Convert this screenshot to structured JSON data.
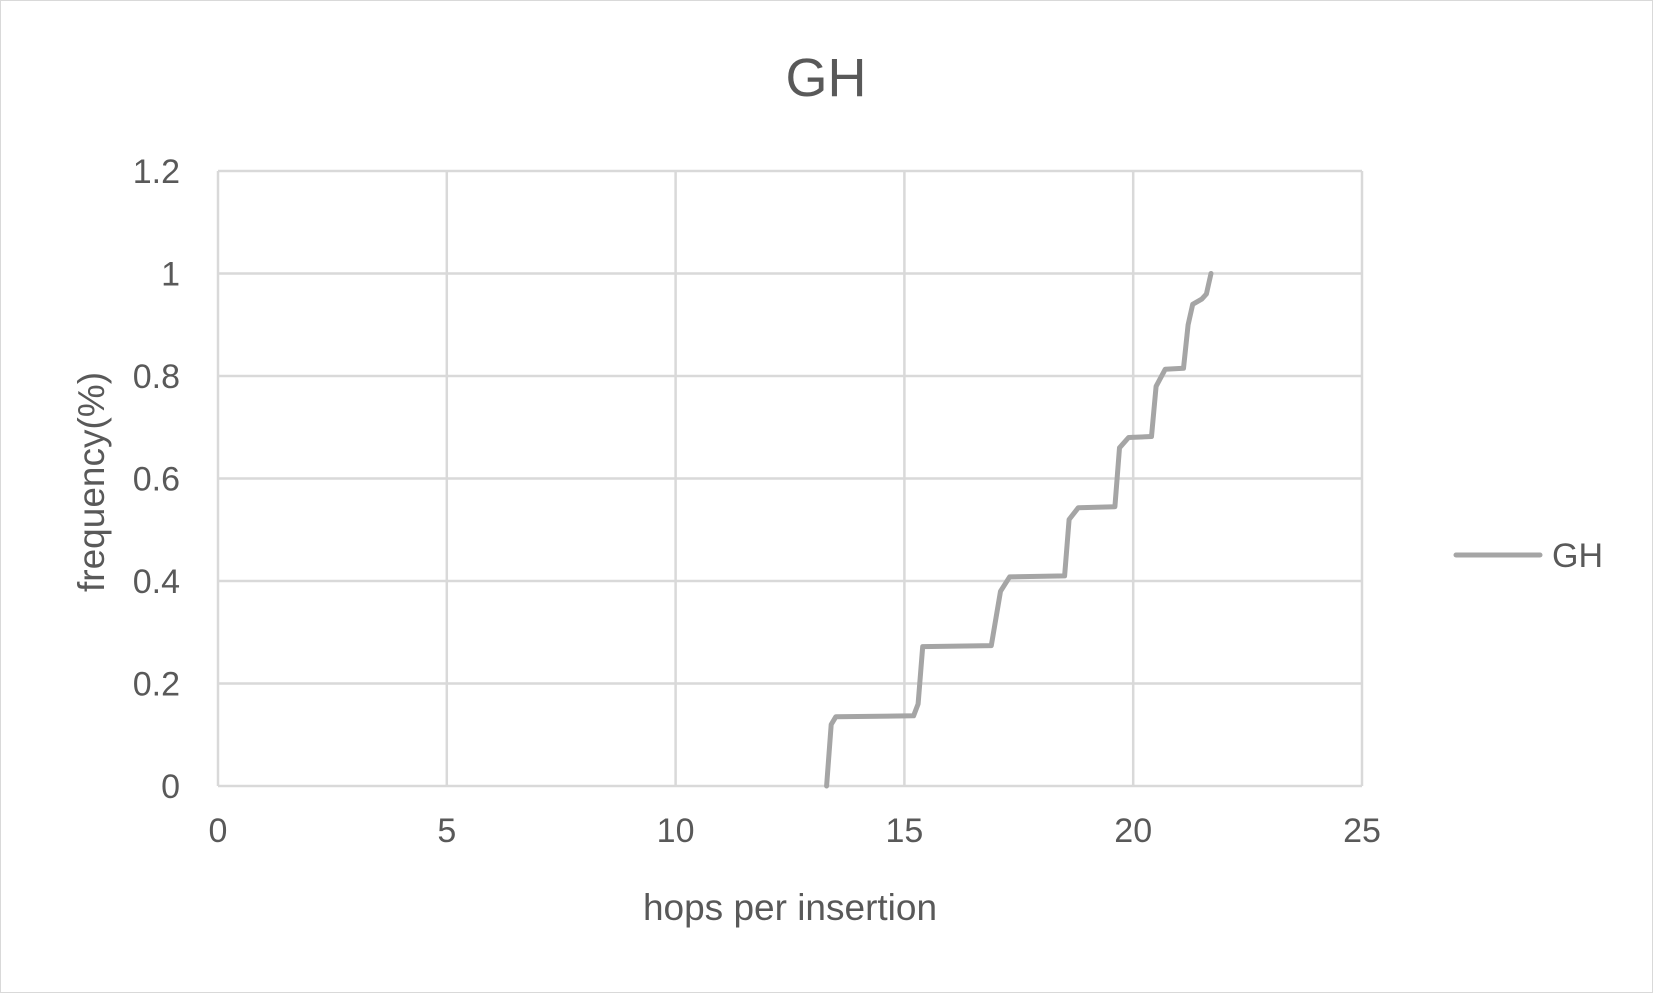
{
  "chart_data": {
    "type": "line",
    "title": "GH",
    "xlabel": "hops per insertion",
    "ylabel": "frequency(%)",
    "xlim": [
      0,
      25
    ],
    "ylim": [
      0,
      1.2
    ],
    "x_ticks": [
      "0",
      "5",
      "10",
      "15",
      "20",
      "25"
    ],
    "y_ticks": [
      "0",
      "0.2",
      "0.4",
      "0.6",
      "0.8",
      "1",
      "1.2"
    ],
    "grid": true,
    "legend_position": "right",
    "series": [
      {
        "name": "GH",
        "color": "#a5a5a5",
        "x": [
          13.3,
          13.4,
          13.5,
          15.2,
          15.3,
          15.4,
          16.9,
          17.1,
          17.3,
          18.5,
          18.6,
          18.8,
          19.6,
          19.7,
          19.9,
          20.4,
          20.5,
          20.7,
          21.1,
          21.2,
          21.3,
          21.5,
          21.6,
          21.7
        ],
        "y": [
          0.0,
          0.12,
          0.135,
          0.137,
          0.16,
          0.272,
          0.274,
          0.38,
          0.408,
          0.41,
          0.52,
          0.543,
          0.545,
          0.66,
          0.68,
          0.682,
          0.78,
          0.813,
          0.815,
          0.9,
          0.94,
          0.95,
          0.96,
          1.0
        ]
      }
    ]
  }
}
